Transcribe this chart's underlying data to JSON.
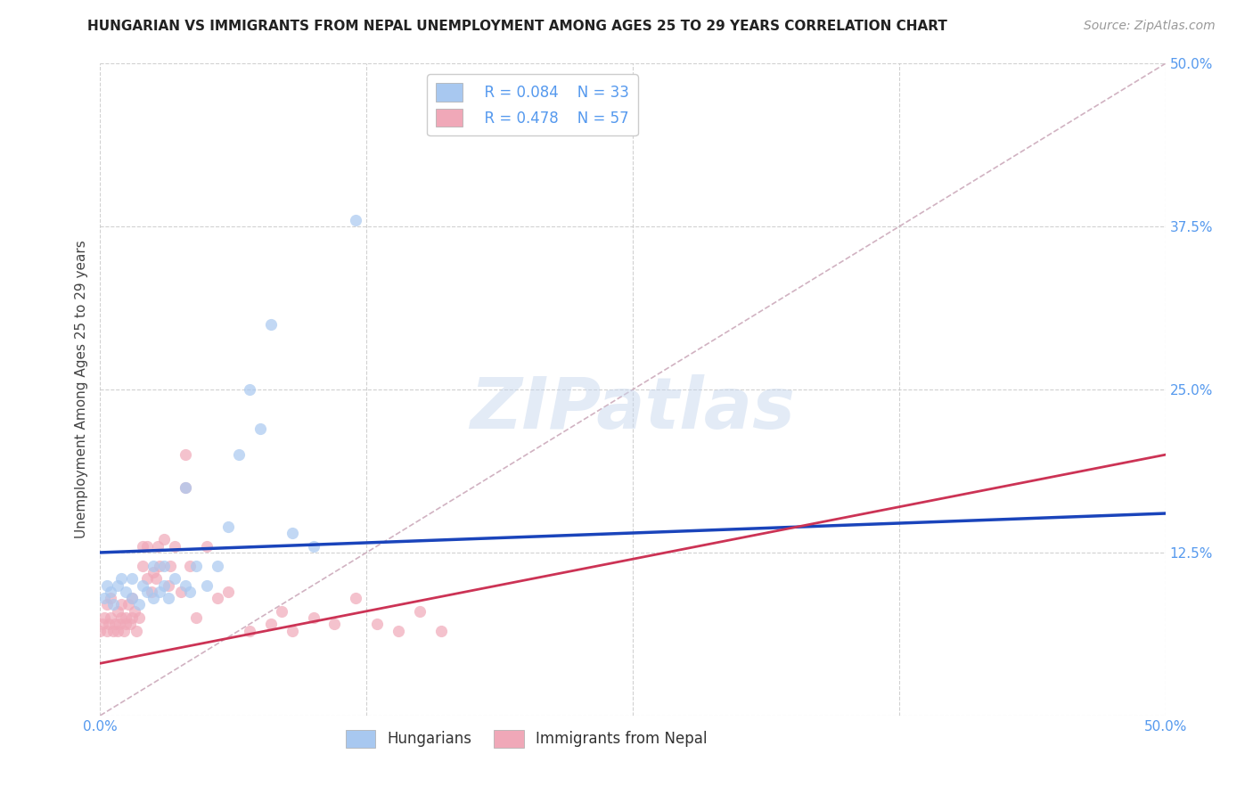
{
  "title": "HUNGARIAN VS IMMIGRANTS FROM NEPAL UNEMPLOYMENT AMONG AGES 25 TO 29 YEARS CORRELATION CHART",
  "source": "Source: ZipAtlas.com",
  "ylabel": "Unemployment Among Ages 25 to 29 years",
  "xlim": [
    0.0,
    0.5
  ],
  "ylim": [
    0.0,
    0.5
  ],
  "xticks": [
    0.0,
    0.125,
    0.25,
    0.375,
    0.5
  ],
  "yticks": [
    0.0,
    0.125,
    0.25,
    0.375,
    0.5
  ],
  "grid_color": "#cccccc",
  "background_color": "#ffffff",
  "watermark_text": "ZIPatlas",
  "legend_blue_R": "0.084",
  "legend_blue_N": "33",
  "legend_pink_R": "0.478",
  "legend_pink_N": "57",
  "blue_color": "#a8c8f0",
  "pink_color": "#f0a8b8",
  "blue_line_color": "#1a44bb",
  "pink_line_color": "#cc3355",
  "diagonal_color": "#ccaabb",
  "tick_color": "#5599ee",
  "hungarian_x": [
    0.002,
    0.003,
    0.005,
    0.006,
    0.008,
    0.01,
    0.012,
    0.015,
    0.015,
    0.018,
    0.02,
    0.022,
    0.025,
    0.025,
    0.028,
    0.03,
    0.03,
    0.032,
    0.035,
    0.04,
    0.04,
    0.042,
    0.045,
    0.05,
    0.055,
    0.06,
    0.065,
    0.07,
    0.075,
    0.08,
    0.09,
    0.1,
    0.12
  ],
  "hungarian_y": [
    0.09,
    0.1,
    0.095,
    0.085,
    0.1,
    0.105,
    0.095,
    0.105,
    0.09,
    0.085,
    0.1,
    0.095,
    0.115,
    0.09,
    0.095,
    0.115,
    0.1,
    0.09,
    0.105,
    0.175,
    0.1,
    0.095,
    0.115,
    0.1,
    0.115,
    0.145,
    0.2,
    0.25,
    0.22,
    0.3,
    0.14,
    0.13,
    0.38
  ],
  "nepal_x": [
    0.0,
    0.001,
    0.002,
    0.003,
    0.003,
    0.004,
    0.005,
    0.005,
    0.006,
    0.007,
    0.008,
    0.008,
    0.009,
    0.01,
    0.01,
    0.011,
    0.012,
    0.012,
    0.013,
    0.014,
    0.015,
    0.015,
    0.016,
    0.017,
    0.018,
    0.02,
    0.02,
    0.022,
    0.022,
    0.024,
    0.025,
    0.026,
    0.027,
    0.028,
    0.03,
    0.032,
    0.033,
    0.035,
    0.038,
    0.04,
    0.04,
    0.042,
    0.045,
    0.05,
    0.055,
    0.06,
    0.07,
    0.08,
    0.085,
    0.09,
    0.1,
    0.11,
    0.12,
    0.13,
    0.14,
    0.15,
    0.16
  ],
  "nepal_y": [
    0.065,
    0.07,
    0.075,
    0.065,
    0.085,
    0.07,
    0.075,
    0.09,
    0.065,
    0.07,
    0.065,
    0.08,
    0.07,
    0.075,
    0.085,
    0.065,
    0.075,
    0.07,
    0.085,
    0.07,
    0.075,
    0.09,
    0.08,
    0.065,
    0.075,
    0.13,
    0.115,
    0.13,
    0.105,
    0.095,
    0.11,
    0.105,
    0.13,
    0.115,
    0.135,
    0.1,
    0.115,
    0.13,
    0.095,
    0.2,
    0.175,
    0.115,
    0.075,
    0.13,
    0.09,
    0.095,
    0.065,
    0.07,
    0.08,
    0.065,
    0.075,
    0.07,
    0.09,
    0.07,
    0.065,
    0.08,
    0.065
  ]
}
